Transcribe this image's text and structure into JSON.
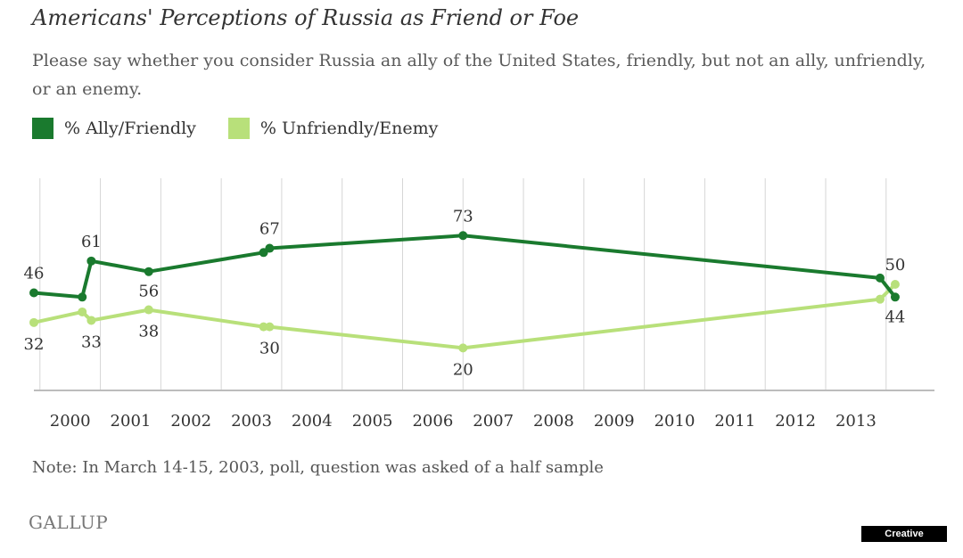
{
  "header": {
    "title": "Americans' Perceptions of Russia as Friend or Foe",
    "subtitle": "Please say whether you consider Russia an ally of the United States, friendly, but not an ally, unfriendly, or an enemy."
  },
  "note": "Note: In March 14-15, 2003, poll, question was asked of a half sample",
  "logo_text": "GALLUP",
  "badge": "Creative Commons",
  "colors": {
    "ally_friendly": "#1a7a2e",
    "unfriendly_enemy": "#b8e07a",
    "grid": "#d6d6d6",
    "axis": "#bcbcbc",
    "text": "#333333"
  },
  "chart_data": {
    "type": "line",
    "title": "Americans' Perceptions of Russia as Friend or Foe",
    "xlabel": "",
    "ylabel": "",
    "x_ticks": [
      "2000",
      "2001",
      "2002",
      "2003",
      "2004",
      "2005",
      "2006",
      "2007",
      "2008",
      "2009",
      "2010",
      "2011",
      "2012",
      "2013"
    ],
    "xlim": [
      1999.4,
      2014.3
    ],
    "ylim": [
      0,
      100
    ],
    "grid": true,
    "legend_position": "top-left",
    "series": [
      {
        "name": "% Ally/Friendly",
        "color": "#1a7a2e",
        "points": [
          {
            "x": 1999.4,
            "y": 46,
            "label": "46"
          },
          {
            "x": 2000.2,
            "y": 44
          },
          {
            "x": 2000.35,
            "y": 61,
            "label": "61"
          },
          {
            "x": 2001.3,
            "y": 56,
            "label": "56"
          },
          {
            "x": 2003.2,
            "y": 65
          },
          {
            "x": 2003.3,
            "y": 67,
            "label": "67"
          },
          {
            "x": 2006.5,
            "y": 73,
            "label": "73"
          },
          {
            "x": 2013.4,
            "y": 53
          },
          {
            "x": 2013.65,
            "y": 44,
            "label": "44"
          }
        ]
      },
      {
        "name": "% Unfriendly/Enemy",
        "color": "#b8e07a",
        "points": [
          {
            "x": 1999.4,
            "y": 32,
            "label": "32"
          },
          {
            "x": 2000.2,
            "y": 37
          },
          {
            "x": 2000.35,
            "y": 33,
            "label": "33"
          },
          {
            "x": 2001.3,
            "y": 38,
            "label": "38"
          },
          {
            "x": 2003.2,
            "y": 30
          },
          {
            "x": 2003.3,
            "y": 30,
            "label": "30"
          },
          {
            "x": 2006.5,
            "y": 20,
            "label": "20"
          },
          {
            "x": 2013.4,
            "y": 43
          },
          {
            "x": 2013.65,
            "y": 50,
            "label": "50"
          }
        ]
      }
    ]
  }
}
